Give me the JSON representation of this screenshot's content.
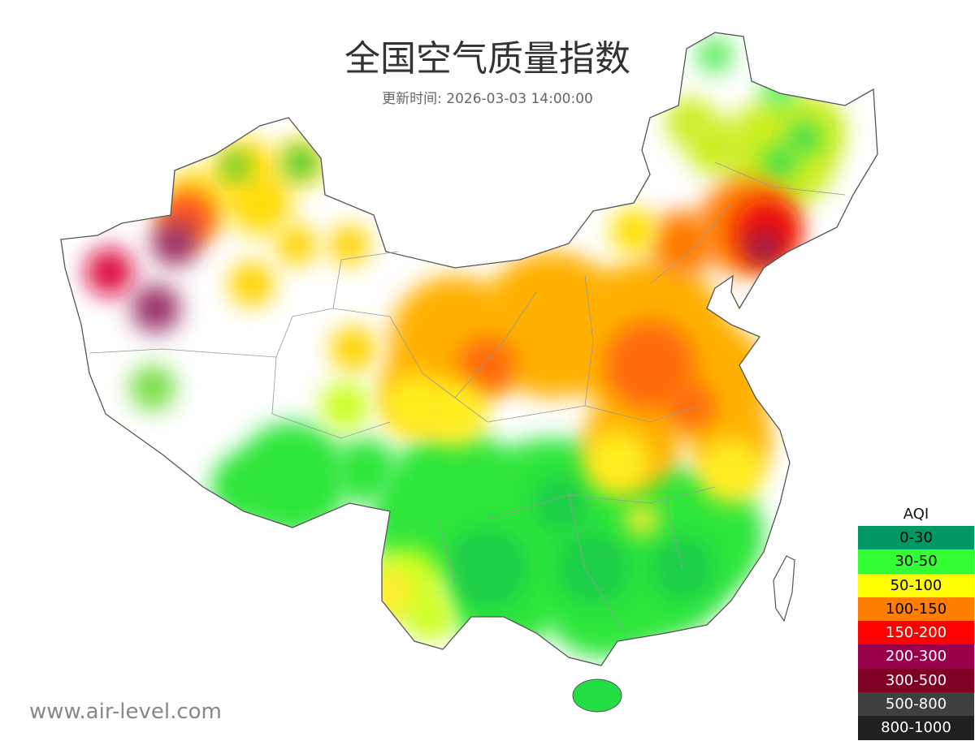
{
  "header": {
    "title": "全国空气质量指数",
    "subtitle": "更新时间: 2026-03-03 14:00:00"
  },
  "legend": {
    "title": "AQI",
    "items": [
      {
        "label": "0-30",
        "color": "#009966",
        "text_color": "#000000"
      },
      {
        "label": "30-50",
        "color": "#33ff33",
        "text_color": "#000000"
      },
      {
        "label": "50-100",
        "color": "#ffff00",
        "text_color": "#000000"
      },
      {
        "label": "100-150",
        "color": "#ff7e00",
        "text_color": "#000000"
      },
      {
        "label": "150-200",
        "color": "#ff0000",
        "text_color": "#ffffff"
      },
      {
        "label": "200-300",
        "color": "#99004c",
        "text_color": "#ffffff"
      },
      {
        "label": "300-500",
        "color": "#7e0023",
        "text_color": "#ffffff"
      },
      {
        "label": "500-800",
        "color": "#404040",
        "text_color": "#ffffff"
      },
      {
        "label": "800-1000",
        "color": "#202020",
        "text_color": "#ffffff"
      }
    ]
  },
  "footer": {
    "watermark": "www.air-level.com"
  }
}
